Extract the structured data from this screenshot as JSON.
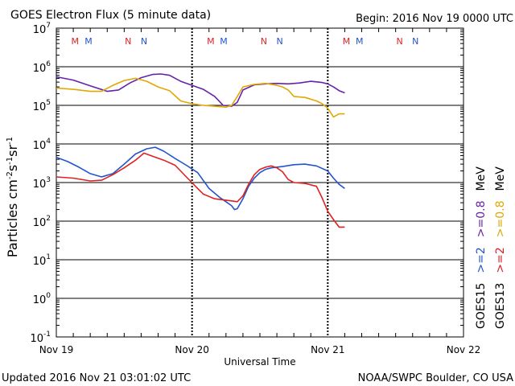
{
  "chart_data": {
    "type": "line",
    "title": "GOES Electron Flux (5 minute data)",
    "begin_label": "Begin: 2016 Nov 19 0000 UTC",
    "xlabel": "Universal Time",
    "ylabel": "Particles cm-2s-1sr-1",
    "ylabel_parts": {
      "base": "Particles cm",
      "e1": "-2",
      "mid1": "s",
      "e2": "-1",
      "mid2": "sr",
      "e3": "-1"
    },
    "x_unit": "hours since 2016 Nov 19 0000 UTC",
    "xlim": [
      0,
      72
    ],
    "x_ticks": [
      {
        "x": 0,
        "label": "Nov 19"
      },
      {
        "x": 24,
        "label": "Nov 20"
      },
      {
        "x": 48,
        "label": "Nov 21"
      },
      {
        "x": 72,
        "label": "Nov 22"
      }
    ],
    "y_scale": "log",
    "ylim_exponent": [
      -1,
      7
    ],
    "y_ticks": [
      {
        "exp": 7,
        "base": "10",
        "sup": "7"
      },
      {
        "exp": 6,
        "base": "10",
        "sup": "6"
      },
      {
        "exp": 5,
        "base": "10",
        "sup": "5"
      },
      {
        "exp": 4,
        "base": "10",
        "sup": "4"
      },
      {
        "exp": 3,
        "base": "10",
        "sup": "3"
      },
      {
        "exp": 2,
        "base": "10",
        "sup": "2"
      },
      {
        "exp": 1,
        "base": "10",
        "sup": "1"
      },
      {
        "exp": 0,
        "base": "10",
        "sup": "0"
      },
      {
        "exp": -1,
        "base": "10",
        "sup": "-1"
      }
    ],
    "threshold": {
      "value": 1000,
      "style": "dashed"
    },
    "noon_midnight_markers": [
      {
        "x": 3.3,
        "label": "M",
        "color": "#dd2222"
      },
      {
        "x": 5.7,
        "label": "M",
        "color": "#2255cc"
      },
      {
        "x": 12.7,
        "label": "N",
        "color": "#dd2222"
      },
      {
        "x": 15.5,
        "label": "N",
        "color": "#2255cc"
      },
      {
        "x": 27.3,
        "label": "M",
        "color": "#dd2222"
      },
      {
        "x": 29.6,
        "label": "M",
        "color": "#2255cc"
      },
      {
        "x": 36.7,
        "label": "N",
        "color": "#dd2222"
      },
      {
        "x": 39.5,
        "label": "N",
        "color": "#2255cc"
      },
      {
        "x": 51.3,
        "label": "M",
        "color": "#dd2222"
      },
      {
        "x": 53.6,
        "label": "M",
        "color": "#2255cc"
      },
      {
        "x": 60.7,
        "label": "N",
        "color": "#dd2222"
      },
      {
        "x": 63.5,
        "label": "N",
        "color": "#2255cc"
      }
    ],
    "legend": {
      "placement": "right",
      "columns": [
        {
          "entries": [
            {
              "text": "GOES15",
              "color": "#000000"
            },
            {
              "text": ">=2",
              "color": "#2255cc"
            },
            {
              "text": ">=0.8",
              "color": "#6622aa"
            },
            {
              "text": "MeV",
              "color": "#000000"
            }
          ]
        },
        {
          "entries": [
            {
              "text": "GOES13",
              "color": "#000000"
            },
            {
              "text": ">=2",
              "color": "#dd2222"
            },
            {
              "text": ">=0.8",
              "color": "#e0a800"
            },
            {
              "text": "MeV",
              "color": "#000000"
            }
          ]
        }
      ]
    },
    "series": [
      {
        "name": "GOES15 >=0.8 MeV",
        "color": "#6622aa",
        "points": [
          [
            0,
            550000
          ],
          [
            3,
            450000
          ],
          [
            6,
            320000
          ],
          [
            9,
            230000
          ],
          [
            11,
            250000
          ],
          [
            13,
            380000
          ],
          [
            15,
            520000
          ],
          [
            17,
            630000
          ],
          [
            18.5,
            650000
          ],
          [
            20,
            600000
          ],
          [
            22,
            420000
          ],
          [
            24,
            330000
          ],
          [
            26,
            260000
          ],
          [
            28,
            170000
          ],
          [
            29.5,
            100000
          ],
          [
            31,
            95000
          ],
          [
            32,
            120000
          ],
          [
            33,
            250000
          ],
          [
            35,
            340000
          ],
          [
            37,
            360000
          ],
          [
            39,
            370000
          ],
          [
            41,
            360000
          ],
          [
            43,
            380000
          ],
          [
            45,
            420000
          ],
          [
            47,
            390000
          ],
          [
            48,
            360000
          ],
          [
            49,
            300000
          ],
          [
            50,
            240000
          ],
          [
            51,
            210000
          ]
        ]
      },
      {
        "name": "GOES13 >=0.8 MeV",
        "color": "#e0a800",
        "points": [
          [
            0,
            280000
          ],
          [
            3,
            260000
          ],
          [
            6,
            230000
          ],
          [
            8,
            230000
          ],
          [
            10,
            330000
          ],
          [
            12,
            440000
          ],
          [
            14,
            500000
          ],
          [
            16,
            420000
          ],
          [
            18,
            300000
          ],
          [
            20,
            240000
          ],
          [
            22,
            130000
          ],
          [
            24,
            110000
          ],
          [
            26,
            100000
          ],
          [
            28,
            95000
          ],
          [
            30,
            90000
          ],
          [
            31,
            100000
          ],
          [
            32,
            170000
          ],
          [
            33,
            300000
          ],
          [
            35,
            350000
          ],
          [
            37,
            370000
          ],
          [
            39,
            330000
          ],
          [
            40,
            300000
          ],
          [
            41,
            250000
          ],
          [
            42,
            170000
          ],
          [
            44,
            160000
          ],
          [
            46,
            130000
          ],
          [
            47,
            110000
          ],
          [
            48,
            85000
          ],
          [
            49,
            50000
          ],
          [
            50,
            60000
          ],
          [
            51,
            60000
          ]
        ]
      },
      {
        "name": "GOES15 >=2 MeV",
        "color": "#2255cc",
        "points": [
          [
            0,
            4500
          ],
          [
            2,
            3500
          ],
          [
            4,
            2500
          ],
          [
            6,
            1700
          ],
          [
            8,
            1400
          ],
          [
            10,
            1700
          ],
          [
            12,
            3000
          ],
          [
            14,
            5500
          ],
          [
            16,
            7500
          ],
          [
            17.5,
            8200
          ],
          [
            19,
            6500
          ],
          [
            21,
            4200
          ],
          [
            23,
            2800
          ],
          [
            25,
            1800
          ],
          [
            27,
            700
          ],
          [
            29,
            400
          ],
          [
            30,
            320
          ],
          [
            31,
            250
          ],
          [
            31.5,
            200
          ],
          [
            32,
            210
          ],
          [
            33,
            380
          ],
          [
            34,
            800
          ],
          [
            35,
            1300
          ],
          [
            36,
            1800
          ],
          [
            37,
            2200
          ],
          [
            38,
            2400
          ],
          [
            40,
            2600
          ],
          [
            42,
            2900
          ],
          [
            44,
            3000
          ],
          [
            46,
            2700
          ],
          [
            48,
            2000
          ],
          [
            49,
            1300
          ],
          [
            50,
            900
          ],
          [
            51,
            700
          ]
        ]
      },
      {
        "name": "GOES13 >=2 MeV",
        "color": "#dd2222",
        "points": [
          [
            0,
            1400
          ],
          [
            3,
            1300
          ],
          [
            6,
            1100
          ],
          [
            8,
            1150
          ],
          [
            10,
            1600
          ],
          [
            12,
            2400
          ],
          [
            14,
            3800
          ],
          [
            15.5,
            5800
          ],
          [
            17,
            4800
          ],
          [
            19,
            3800
          ],
          [
            21,
            2800
          ],
          [
            23,
            1400
          ],
          [
            25,
            700
          ],
          [
            26,
            500
          ],
          [
            28,
            380
          ],
          [
            30,
            350
          ],
          [
            32,
            320
          ],
          [
            33,
            450
          ],
          [
            34,
            900
          ],
          [
            35,
            1600
          ],
          [
            36,
            2200
          ],
          [
            37,
            2500
          ],
          [
            38,
            2700
          ],
          [
            39,
            2400
          ],
          [
            40,
            1900
          ],
          [
            41,
            1200
          ],
          [
            42,
            1000
          ],
          [
            44,
            950
          ],
          [
            46,
            800
          ],
          [
            47,
            400
          ],
          [
            48,
            180
          ],
          [
            49,
            110
          ],
          [
            50,
            70
          ],
          [
            51,
            70
          ]
        ]
      }
    ]
  },
  "footer": {
    "updated": "Updated 2016 Nov 21 03:01:02 UTC",
    "credit": "NOAA/SWPC Boulder, CO USA"
  }
}
